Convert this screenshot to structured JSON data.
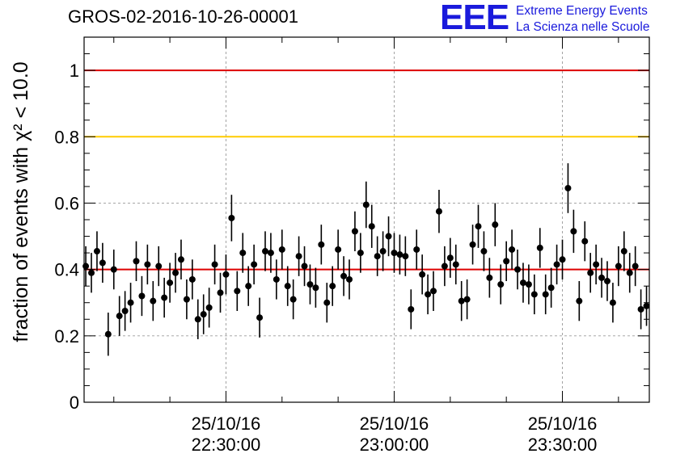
{
  "title": "GROS-02-2016-10-26-00001",
  "logo": {
    "letters": "EEE",
    "line1": "Extreme Energy Events",
    "line2": "La Scienza nelle Scuole",
    "color": "#1a1adc"
  },
  "chart_data": {
    "type": "scatter",
    "title": "GROS-02-2016-10-26-00001",
    "ylabel": "fraction of events with χ² < 10.0",
    "xlabel": "",
    "ylim": [
      0,
      1.1
    ],
    "yticks": [
      "0",
      "0.2",
      "0.4",
      "0.6",
      "0.8",
      "1"
    ],
    "xticks": [
      {
        "date": "25/10/16",
        "time": "22:30:00",
        "value": 0
      },
      {
        "date": "25/10/16",
        "time": "23:00:00",
        "value": 30
      },
      {
        "date": "25/10/16",
        "time": "23:30:00",
        "value": 60
      }
    ],
    "xunit": "minutes after 25/10/16 22:30:00",
    "xlim": [
      -25.3,
      75.5
    ],
    "grid": true,
    "reference_lines": [
      {
        "y": 1.0,
        "color": "#dd0000"
      },
      {
        "y": 0.8,
        "color": "#ffcc00"
      },
      {
        "y": 0.4,
        "color": "#dd0000"
      }
    ],
    "series": [
      {
        "style": "markers with error bars",
        "color": "#000000",
        "x": [
          -25,
          -24,
          -23,
          -22,
          -21,
          -20,
          -19,
          -18,
          -17,
          -16,
          -15,
          -14,
          -13,
          -12,
          -11,
          -10,
          -9,
          -8,
          -7,
          -6,
          -5,
          -4,
          -3,
          -2,
          -1,
          0,
          1,
          2,
          3,
          4,
          5,
          6,
          7,
          8,
          9,
          10,
          11,
          12,
          13,
          14,
          15,
          16,
          17,
          18,
          19,
          20,
          21,
          22,
          23,
          24,
          25,
          26,
          27,
          28,
          29,
          30,
          31,
          32,
          33,
          34,
          35,
          36,
          37,
          38,
          39,
          40,
          41,
          42,
          43,
          44,
          45,
          46,
          47,
          48,
          49,
          50,
          51,
          52,
          53,
          54,
          55,
          56,
          57,
          58,
          59,
          60,
          61,
          62,
          63,
          64,
          65,
          66,
          67,
          68,
          69,
          70,
          71,
          72,
          73,
          74,
          75
        ],
        "y": [
          0.41,
          0.39,
          0.455,
          0.42,
          0.205,
          0.4,
          0.26,
          0.275,
          0.3,
          0.425,
          0.32,
          0.415,
          0.305,
          0.41,
          0.315,
          0.36,
          0.39,
          0.43,
          0.31,
          0.37,
          0.25,
          0.265,
          0.285,
          0.415,
          0.33,
          0.385,
          0.555,
          0.335,
          0.45,
          0.35,
          0.415,
          0.255,
          0.455,
          0.45,
          0.37,
          0.46,
          0.35,
          0.31,
          0.44,
          0.41,
          0.355,
          0.345,
          0.475,
          0.3,
          0.35,
          0.46,
          0.38,
          0.37,
          0.515,
          0.45,
          0.595,
          0.53,
          0.44,
          0.455,
          0.5,
          0.45,
          0.445,
          0.44,
          0.28,
          0.46,
          0.385,
          0.325,
          0.335,
          0.575,
          0.41,
          0.435,
          0.415,
          0.305,
          0.31,
          0.475,
          0.53,
          0.455,
          0.375,
          0.535,
          0.355,
          0.425,
          0.46,
          0.4,
          0.36,
          0.355,
          0.325,
          0.465,
          0.325,
          0.345,
          0.415,
          0.43,
          0.645,
          0.515,
          0.305,
          0.485,
          0.39,
          0.415,
          0.375,
          0.365,
          0.3,
          0.41,
          0.455,
          0.39,
          0.41,
          0.28,
          0.29
        ],
        "yerr": [
          0.06,
          0.06,
          0.06,
          0.06,
          0.065,
          0.06,
          0.06,
          0.06,
          0.06,
          0.06,
          0.06,
          0.06,
          0.06,
          0.06,
          0.06,
          0.06,
          0.06,
          0.06,
          0.06,
          0.06,
          0.06,
          0.06,
          0.06,
          0.06,
          0.06,
          0.06,
          0.07,
          0.06,
          0.06,
          0.06,
          0.06,
          0.06,
          0.06,
          0.06,
          0.06,
          0.06,
          0.06,
          0.06,
          0.06,
          0.06,
          0.06,
          0.06,
          0.06,
          0.06,
          0.06,
          0.06,
          0.06,
          0.06,
          0.06,
          0.06,
          0.07,
          0.065,
          0.06,
          0.06,
          0.06,
          0.06,
          0.06,
          0.06,
          0.06,
          0.06,
          0.06,
          0.06,
          0.06,
          0.065,
          0.06,
          0.06,
          0.06,
          0.06,
          0.06,
          0.06,
          0.065,
          0.06,
          0.06,
          0.065,
          0.06,
          0.06,
          0.06,
          0.06,
          0.06,
          0.06,
          0.06,
          0.06,
          0.06,
          0.06,
          0.06,
          0.06,
          0.075,
          0.065,
          0.06,
          0.06,
          0.06,
          0.06,
          0.06,
          0.06,
          0.06,
          0.06,
          0.06,
          0.06,
          0.06,
          0.06,
          0.06
        ]
      }
    ]
  }
}
